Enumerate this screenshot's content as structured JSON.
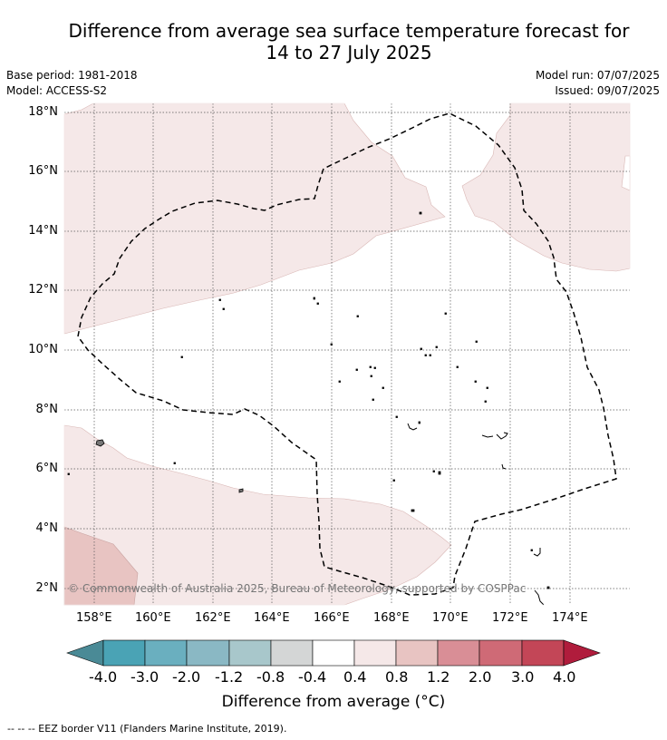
{
  "title": {
    "line1": "Difference from average sea surface temperature forecast for",
    "line2": "14 to 27 July 2025"
  },
  "meta": {
    "base_period": "Base period: 1981-2018",
    "model": "Model: ACCESS-S2",
    "model_run": "Model run: 07/07/2025",
    "issued": "Issued: 09/07/2025"
  },
  "map": {
    "lat_labels": [
      "18°N",
      "16°N",
      "14°N",
      "12°N",
      "10°N",
      "8°N",
      "6°N",
      "4°N",
      "2°N"
    ],
    "lon_labels": [
      "158°E",
      "160°E",
      "162°E",
      "164°E",
      "166°E",
      "168°E",
      "170°E",
      "172°E",
      "174°E"
    ],
    "copyright": "© Commonwealth of Australia 2025, Bureau of Meteorology, supported by COSPPac",
    "colors": {
      "anomaly_0_4_to_0_8": "#f5e8e8",
      "anomaly_0_8_to_1_2": "#e8c4c2",
      "land_outline": "#000000",
      "eez_border": "#000000"
    }
  },
  "colorbar": {
    "title": "Difference from average (°C)",
    "tick_labels": [
      "-4.0",
      "-3.0",
      "-2.0",
      "-1.2",
      "-0.8",
      "-0.4",
      "0.4",
      "0.8",
      "1.2",
      "2.0",
      "3.0",
      "4.0"
    ],
    "colors": [
      "#4a8a96",
      "#4aa3b5",
      "#6aafbf",
      "#8ab8c4",
      "#a8c7cb",
      "#d4d6d6",
      "#ffffff",
      "#f5e8e8",
      "#e8c4c2",
      "#d98e96",
      "#cf6a76",
      "#c34657",
      "#b01c3c"
    ]
  },
  "footer": "--  --  -- EEZ border V11 (Flanders Marine Institute, 2019)."
}
